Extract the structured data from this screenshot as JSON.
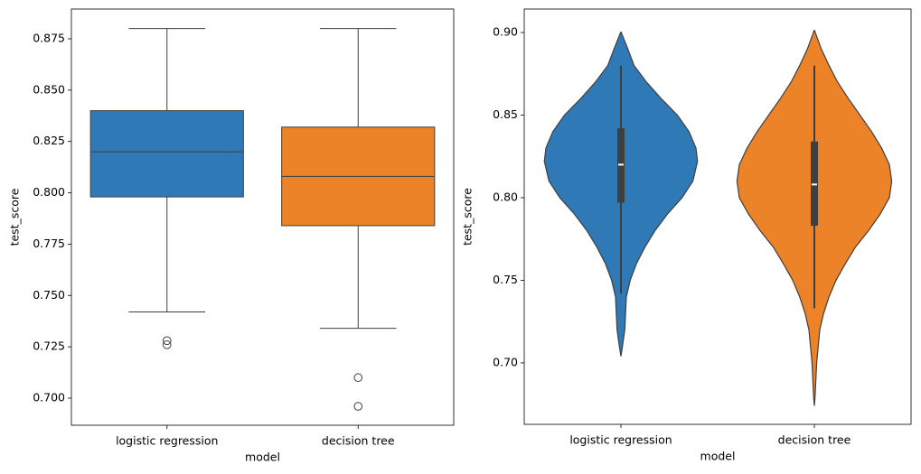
{
  "chart_data": [
    {
      "type": "box",
      "xlabel": "model",
      "ylabel": "test_score",
      "categories": [
        "logistic regression",
        "decision tree"
      ],
      "colors": [
        "#2f7ab6",
        "#ec8329"
      ],
      "ylim": [
        0.6868,
        0.8895
      ],
      "yticks": [
        {
          "value": 0.7,
          "label": "0.700"
        },
        0.725,
        {
          "value": 0.75,
          "label": "0.750"
        },
        0.775,
        {
          "value": 0.8,
          "label": "0.800"
        },
        0.825,
        {
          "value": 0.85,
          "label": "0.850"
        },
        0.875
      ],
      "boxes": [
        {
          "whisker_low": 0.742,
          "q1": 0.798,
          "median": 0.82,
          "q3": 0.84,
          "whisker_high": 0.88,
          "outliers": [
            0.728,
            0.726
          ]
        },
        {
          "whisker_low": 0.734,
          "q1": 0.784,
          "median": 0.808,
          "q3": 0.832,
          "whisker_high": 0.88,
          "outliers": [
            0.71,
            0.696
          ]
        }
      ]
    },
    {
      "type": "violin",
      "xlabel": "model",
      "ylabel": "test_score",
      "categories": [
        "logistic regression",
        "decision tree"
      ],
      "colors": [
        "#2f7ab6",
        "#ec8329"
      ],
      "ylim": [
        0.6628,
        0.9142
      ],
      "yticks": [
        {
          "value": 0.7,
          "label": "0.70"
        },
        {
          "value": 0.75,
          "label": "0.75"
        },
        {
          "value": 0.8,
          "label": "0.80"
        },
        {
          "value": 0.85,
          "label": "0.85"
        },
        {
          "value": 0.9,
          "label": "0.90"
        }
      ],
      "violins": [
        {
          "y": [
            0.9005,
            0.89,
            0.88,
            0.87,
            0.86,
            0.85,
            0.84,
            0.83,
            0.822,
            0.81,
            0.8,
            0.79,
            0.78,
            0.77,
            0.76,
            0.75,
            0.74,
            0.73,
            0.72,
            0.71,
            0.704
          ],
          "density": [
            0,
            0.09,
            0.17,
            0.33,
            0.52,
            0.73,
            0.88,
            0.97,
            0.99,
            0.93,
            0.79,
            0.6,
            0.44,
            0.31,
            0.2,
            0.12,
            0.07,
            0.06,
            0.05,
            0.02,
            0
          ],
          "inner": {
            "whisker_low": 0.742,
            "q1": 0.797,
            "median": 0.82,
            "q3": 0.842,
            "whisker_high": 0.88
          }
        },
        {
          "y": [
            0.9015,
            0.89,
            0.88,
            0.87,
            0.86,
            0.85,
            0.84,
            0.83,
            0.82,
            0.81,
            0.8,
            0.79,
            0.78,
            0.77,
            0.76,
            0.75,
            0.74,
            0.73,
            0.72,
            0.71,
            0.7,
            0.69,
            0.68,
            0.674
          ],
          "density": [
            0,
            0.09,
            0.19,
            0.3,
            0.44,
            0.59,
            0.74,
            0.87,
            0.97,
            1,
            0.97,
            0.85,
            0.7,
            0.53,
            0.4,
            0.28,
            0.19,
            0.12,
            0.07,
            0.05,
            0.03,
            0.02,
            0.01,
            0
          ],
          "inner": {
            "whisker_low": 0.733,
            "q1": 0.783,
            "median": 0.808,
            "q3": 0.834,
            "whisker_high": 0.88
          }
        }
      ]
    }
  ]
}
